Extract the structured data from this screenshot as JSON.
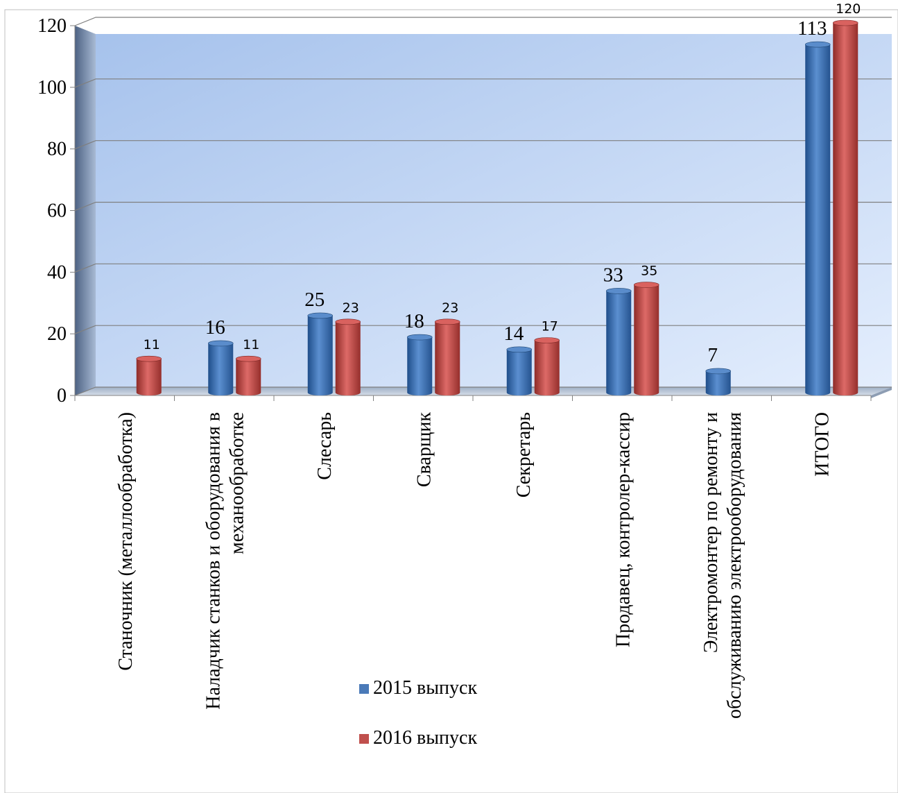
{
  "chart_data": {
    "type": "bar",
    "categories": [
      "Станочник (металлообработка)",
      "Наладчик станков и оборудования в механообработке",
      "Слесарь",
      "Сварщик",
      "Секретарь",
      "Продавец, контролер-кассир",
      "Электромонтер по ремонту и обслуживанию электрооборудования",
      "ИТОГО"
    ],
    "category_lines": [
      [
        "Станочник (металлообработка)"
      ],
      [
        "Наладчик станков и оборудования в",
        "механообработке"
      ],
      [
        "Слесарь"
      ],
      [
        "Сварщик"
      ],
      [
        "Секретарь"
      ],
      [
        "Продавец, контролер-кассир"
      ],
      [
        "Электромонтер по ремонту и",
        "обслуживанию электрооборудования"
      ],
      [
        "ИТОГО"
      ]
    ],
    "series": [
      {
        "name": "2015 выпуск",
        "color": "#4a7ab8",
        "values": [
          null,
          16,
          25,
          18,
          14,
          33,
          7,
          113
        ]
      },
      {
        "name": "2016 выпуск",
        "color": "#c0504d",
        "values": [
          11,
          11,
          23,
          23,
          17,
          35,
          null,
          120
        ]
      }
    ],
    "y_ticks": [
      0,
      20,
      40,
      60,
      80,
      100,
      120
    ],
    "ylim": [
      0,
      120
    ],
    "grid": true,
    "legend_position": "bottom-center",
    "title": "",
    "xlabel": "",
    "ylabel": ""
  }
}
